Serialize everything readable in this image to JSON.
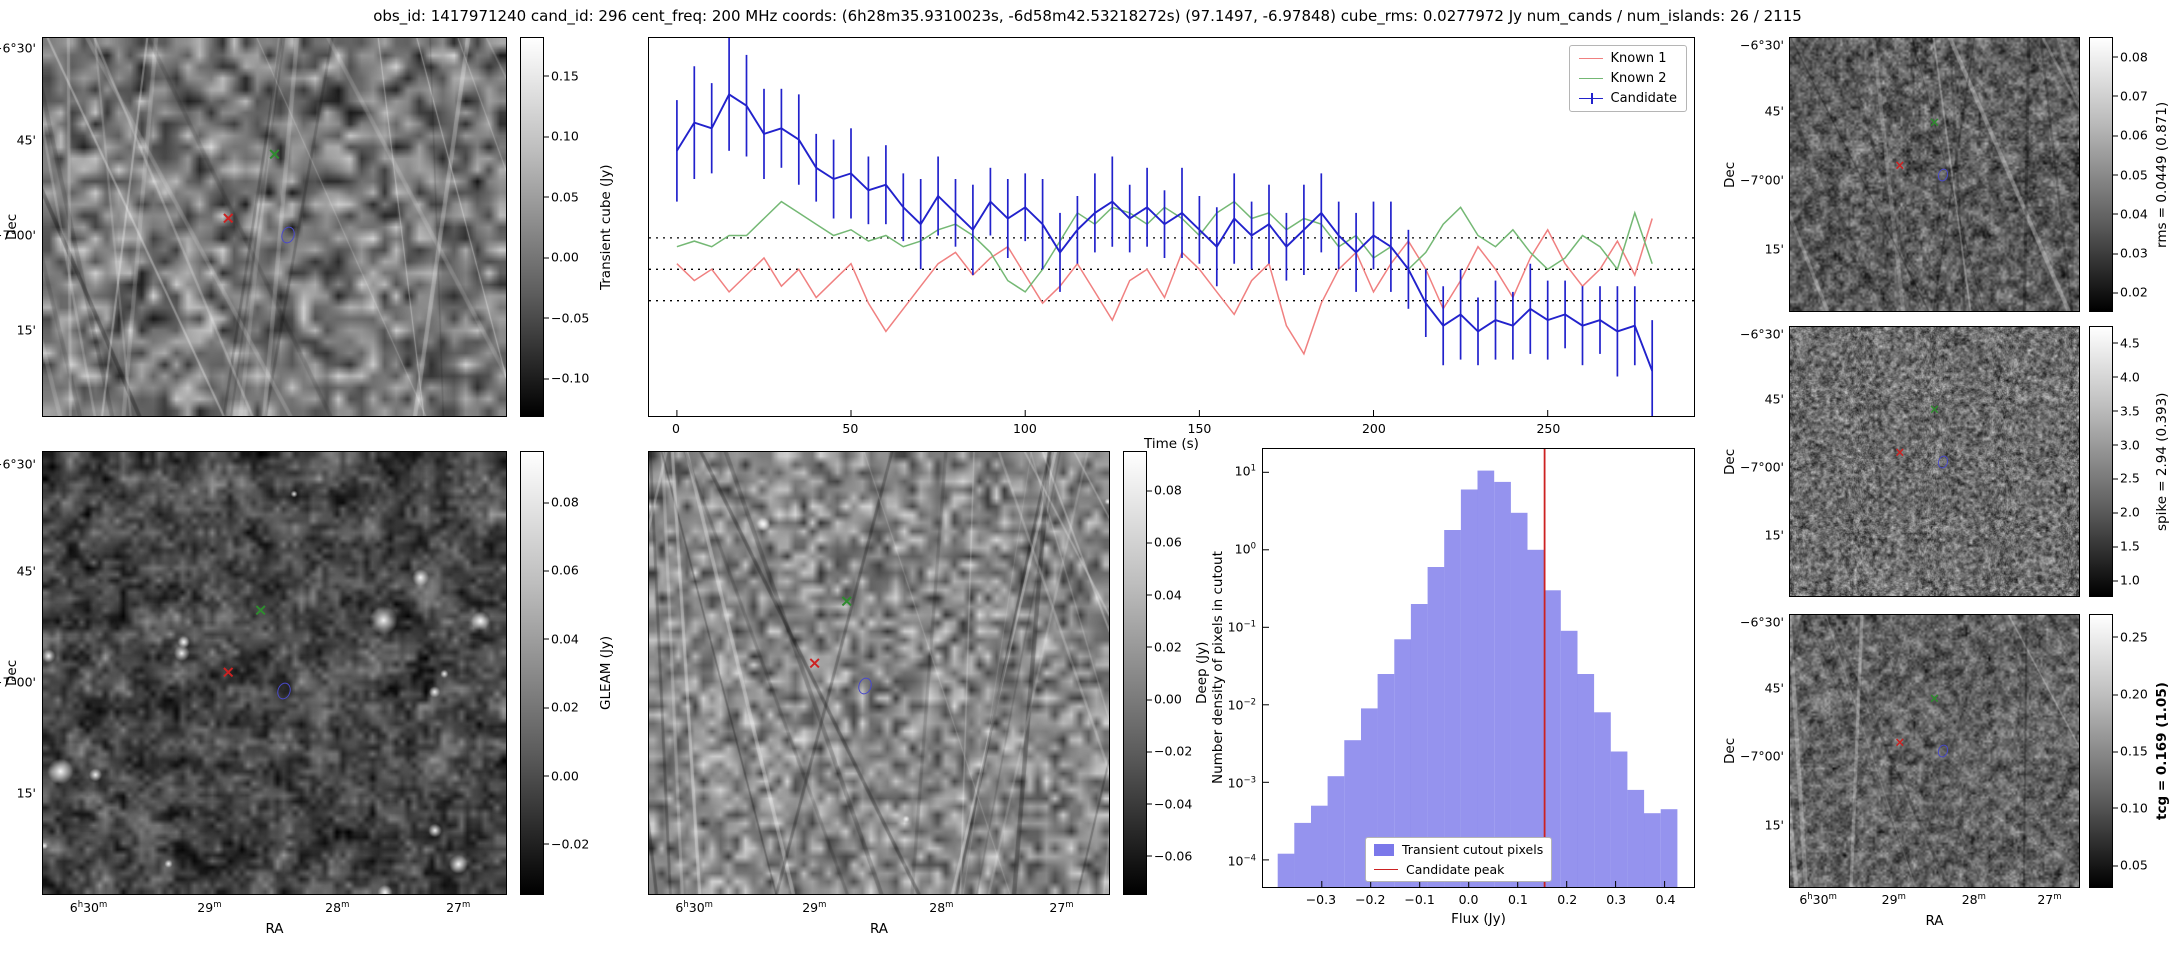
{
  "title": "obs_id: 1417971240 cand_id: 296 cent_freq: 200 MHz coords: (6h28m35.9310023s, -6d58m42.53218272s) (97.1497, -6.97848) cube_rms: 0.0277972 Jy num_cands / num_islands: 26 / 2115",
  "axes": {
    "dec_label": "Dec",
    "ra_label": "RA",
    "dec_ticks": [
      "−6°30'",
      "45'",
      "−7°00'",
      "15'"
    ],
    "ra_ticks": [
      "6h30m",
      "29m",
      "28m",
      "27m"
    ]
  },
  "colors": {
    "known1": "#f08080",
    "known2": "#74b874",
    "candidate": "#2222cc",
    "hist_bar": "#7b78ea",
    "peak_line": "#cc2222",
    "marker_green": "#2e8b2e",
    "marker_red": "#cc2222",
    "marker_blue": "#4949c9"
  },
  "panels": {
    "transient": {
      "colorbar_label": "Transient cube (Jy)",
      "colorbar_ticks": [
        "0.15",
        "0.10",
        "0.05",
        "0.00",
        "−0.05",
        "−0.10"
      ]
    },
    "gleam": {
      "colorbar_label": "GLEAM (Jy)",
      "colorbar_ticks": [
        "0.08",
        "0.06",
        "0.04",
        "0.02",
        "0.00",
        "−0.02"
      ]
    },
    "deep": {
      "colorbar_label": "Deep (Jy)",
      "colorbar_ticks": [
        "0.08",
        "0.06",
        "0.04",
        "0.02",
        "0.00",
        "−0.02",
        "−0.04",
        "−0.06"
      ]
    },
    "rms": {
      "colorbar_label": "rms = 0.0449 (0.871)",
      "colorbar_ticks": [
        "0.08",
        "0.07",
        "0.06",
        "0.05",
        "0.04",
        "0.03",
        "0.02"
      ]
    },
    "spike": {
      "colorbar_label": "spike = 2.94 (0.393)",
      "colorbar_ticks": [
        "4.5",
        "4.0",
        "3.5",
        "3.0",
        "2.5",
        "2.0",
        "1.5",
        "1.0"
      ]
    },
    "tcg": {
      "colorbar_label": "tcg = 0.169 (1.05)",
      "colorbar_ticks": [
        "0.25",
        "0.20",
        "0.15",
        "0.10",
        "0.05"
      ]
    }
  },
  "chart_data": [
    {
      "type": "line",
      "xlabel": "Time (s)",
      "ylabel": "",
      "xlim": [
        -8,
        292
      ],
      "ylim": [
        -0.13,
        0.205
      ],
      "x_ticks": [
        0,
        50,
        100,
        150,
        200,
        250
      ],
      "x_tick_labels": [
        "0",
        "50",
        "100",
        "150",
        "200",
        "250"
      ],
      "hlines": [
        0.0278,
        0.0,
        -0.0278
      ],
      "legend_position": "upper right",
      "x": [
        0,
        5,
        10,
        15,
        20,
        25,
        30,
        35,
        40,
        45,
        50,
        55,
        60,
        65,
        70,
        75,
        80,
        85,
        90,
        95,
        100,
        105,
        110,
        115,
        120,
        125,
        130,
        135,
        140,
        145,
        150,
        155,
        160,
        165,
        170,
        175,
        180,
        185,
        190,
        195,
        200,
        205,
        210,
        215,
        220,
        225,
        230,
        235,
        240,
        245,
        250,
        255,
        260,
        265,
        270,
        275,
        280
      ],
      "series": [
        {
          "name": "Known 1",
          "color": "#f08080",
          "values": [
            0.005,
            -0.01,
            0.0,
            -0.02,
            -0.005,
            0.01,
            -0.015,
            0.0,
            -0.025,
            -0.01,
            0.005,
            -0.03,
            -0.055,
            -0.035,
            -0.015,
            0.005,
            0.015,
            -0.005,
            0.01,
            0.02,
            -0.005,
            -0.03,
            -0.015,
            0.005,
            -0.02,
            -0.045,
            -0.01,
            0.0,
            -0.025,
            0.015,
            0.0,
            -0.02,
            -0.04,
            -0.01,
            0.005,
            -0.05,
            -0.075,
            -0.03,
            0.0,
            0.015,
            -0.02,
            0.005,
            0.025,
            0.0,
            -0.035,
            -0.01,
            0.02,
            0.0,
            -0.025,
            0.01,
            0.035,
            0.005,
            -0.015,
            0.0,
            0.025,
            -0.005,
            0.045
          ]
        },
        {
          "name": "Known 2",
          "color": "#74b874",
          "values": [
            0.02,
            0.025,
            0.02,
            0.03,
            0.03,
            0.045,
            0.06,
            0.05,
            0.04,
            0.03,
            0.035,
            0.025,
            0.03,
            0.02,
            0.025,
            0.035,
            0.04,
            0.03,
            0.015,
            -0.01,
            -0.02,
            0.0,
            0.025,
            0.05,
            0.04,
            0.055,
            0.05,
            0.04,
            0.055,
            0.045,
            0.03,
            0.05,
            0.06,
            0.045,
            0.05,
            0.035,
            0.045,
            0.04,
            0.02,
            0.03,
            0.01,
            0.02,
            0.0,
            0.015,
            0.04,
            0.055,
            0.03,
            0.02,
            0.035,
            0.015,
            0.0,
            0.01,
            0.03,
            0.02,
            0.0,
            0.05,
            0.005
          ]
        },
        {
          "name": "Candidate",
          "color": "#2222cc",
          "values": [
            0.105,
            0.13,
            0.125,
            0.155,
            0.145,
            0.12,
            0.125,
            0.115,
            0.09,
            0.08,
            0.085,
            0.07,
            0.075,
            0.055,
            0.04,
            0.065,
            0.05,
            0.035,
            0.06,
            0.045,
            0.055,
            0.04,
            0.015,
            0.035,
            0.05,
            0.06,
            0.045,
            0.055,
            0.04,
            0.05,
            0.035,
            0.02,
            0.045,
            0.03,
            0.04,
            0.02,
            0.035,
            0.05,
            0.03,
            0.015,
            0.03,
            0.02,
            0.0,
            -0.03,
            -0.05,
            -0.04,
            -0.055,
            -0.045,
            -0.05,
            -0.035,
            -0.045,
            -0.04,
            -0.05,
            -0.045,
            -0.055,
            -0.05,
            -0.09
          ],
          "errors": [
            0.045,
            0.05,
            0.04,
            0.05,
            0.045,
            0.04,
            0.035,
            0.04,
            0.03,
            0.035,
            0.04,
            0.03,
            0.035,
            0.03,
            0.04,
            0.035,
            0.03,
            0.04,
            0.03,
            0.035,
            0.03,
            0.04,
            0.035,
            0.03,
            0.035,
            0.04,
            0.03,
            0.035,
            0.03,
            0.04,
            0.03,
            0.035,
            0.04,
            0.03,
            0.035,
            0.03,
            0.04,
            0.035,
            0.03,
            0.035,
            0.03,
            0.04,
            0.035,
            0.03,
            0.035,
            0.04,
            0.03,
            0.035,
            0.03,
            0.04,
            0.035,
            0.03,
            0.035,
            0.03,
            0.04,
            0.035,
            0.045
          ]
        }
      ]
    },
    {
      "type": "bar",
      "xlabel": "Flux (Jy)",
      "ylabel": "Number density of pixels in cutout",
      "y_scale": "log",
      "xlim": [
        -0.42,
        0.46
      ],
      "ylim_log": [
        -4.35,
        1.3
      ],
      "x_ticks": [
        -0.3,
        -0.2,
        -0.1,
        0.0,
        0.1,
        0.2,
        0.3,
        0.4
      ],
      "x_tick_labels": [
        "−0.3",
        "−0.2",
        "−0.1",
        "0.0",
        "0.1",
        "0.2",
        "0.3",
        "0.4"
      ],
      "y_tick_exponents": [
        1,
        0,
        -1,
        -2,
        -3,
        -4
      ],
      "y_tick_labels": [
        "10^1",
        "10^0",
        "10^−1",
        "10^−2",
        "10^−3",
        "10^−4"
      ],
      "bin_start": -0.39,
      "bin_width": 0.034,
      "values": [
        0.00012,
        0.0003,
        0.0005,
        0.0012,
        0.0035,
        0.009,
        0.025,
        0.07,
        0.2,
        0.6,
        1.8,
        6.0,
        10.5,
        7.5,
        3.0,
        1.0,
        0.3,
        0.09,
        0.025,
        0.008,
        0.0025,
        0.0008,
        0.0004,
        0.00045
      ],
      "bar_color": "#7b78ea",
      "vline": {
        "x": 0.155,
        "color": "#cc2222",
        "label": "Candidate peak"
      },
      "legend": [
        "Transient cutout pixels",
        "Candidate peak"
      ],
      "legend_position": "lower center"
    }
  ]
}
